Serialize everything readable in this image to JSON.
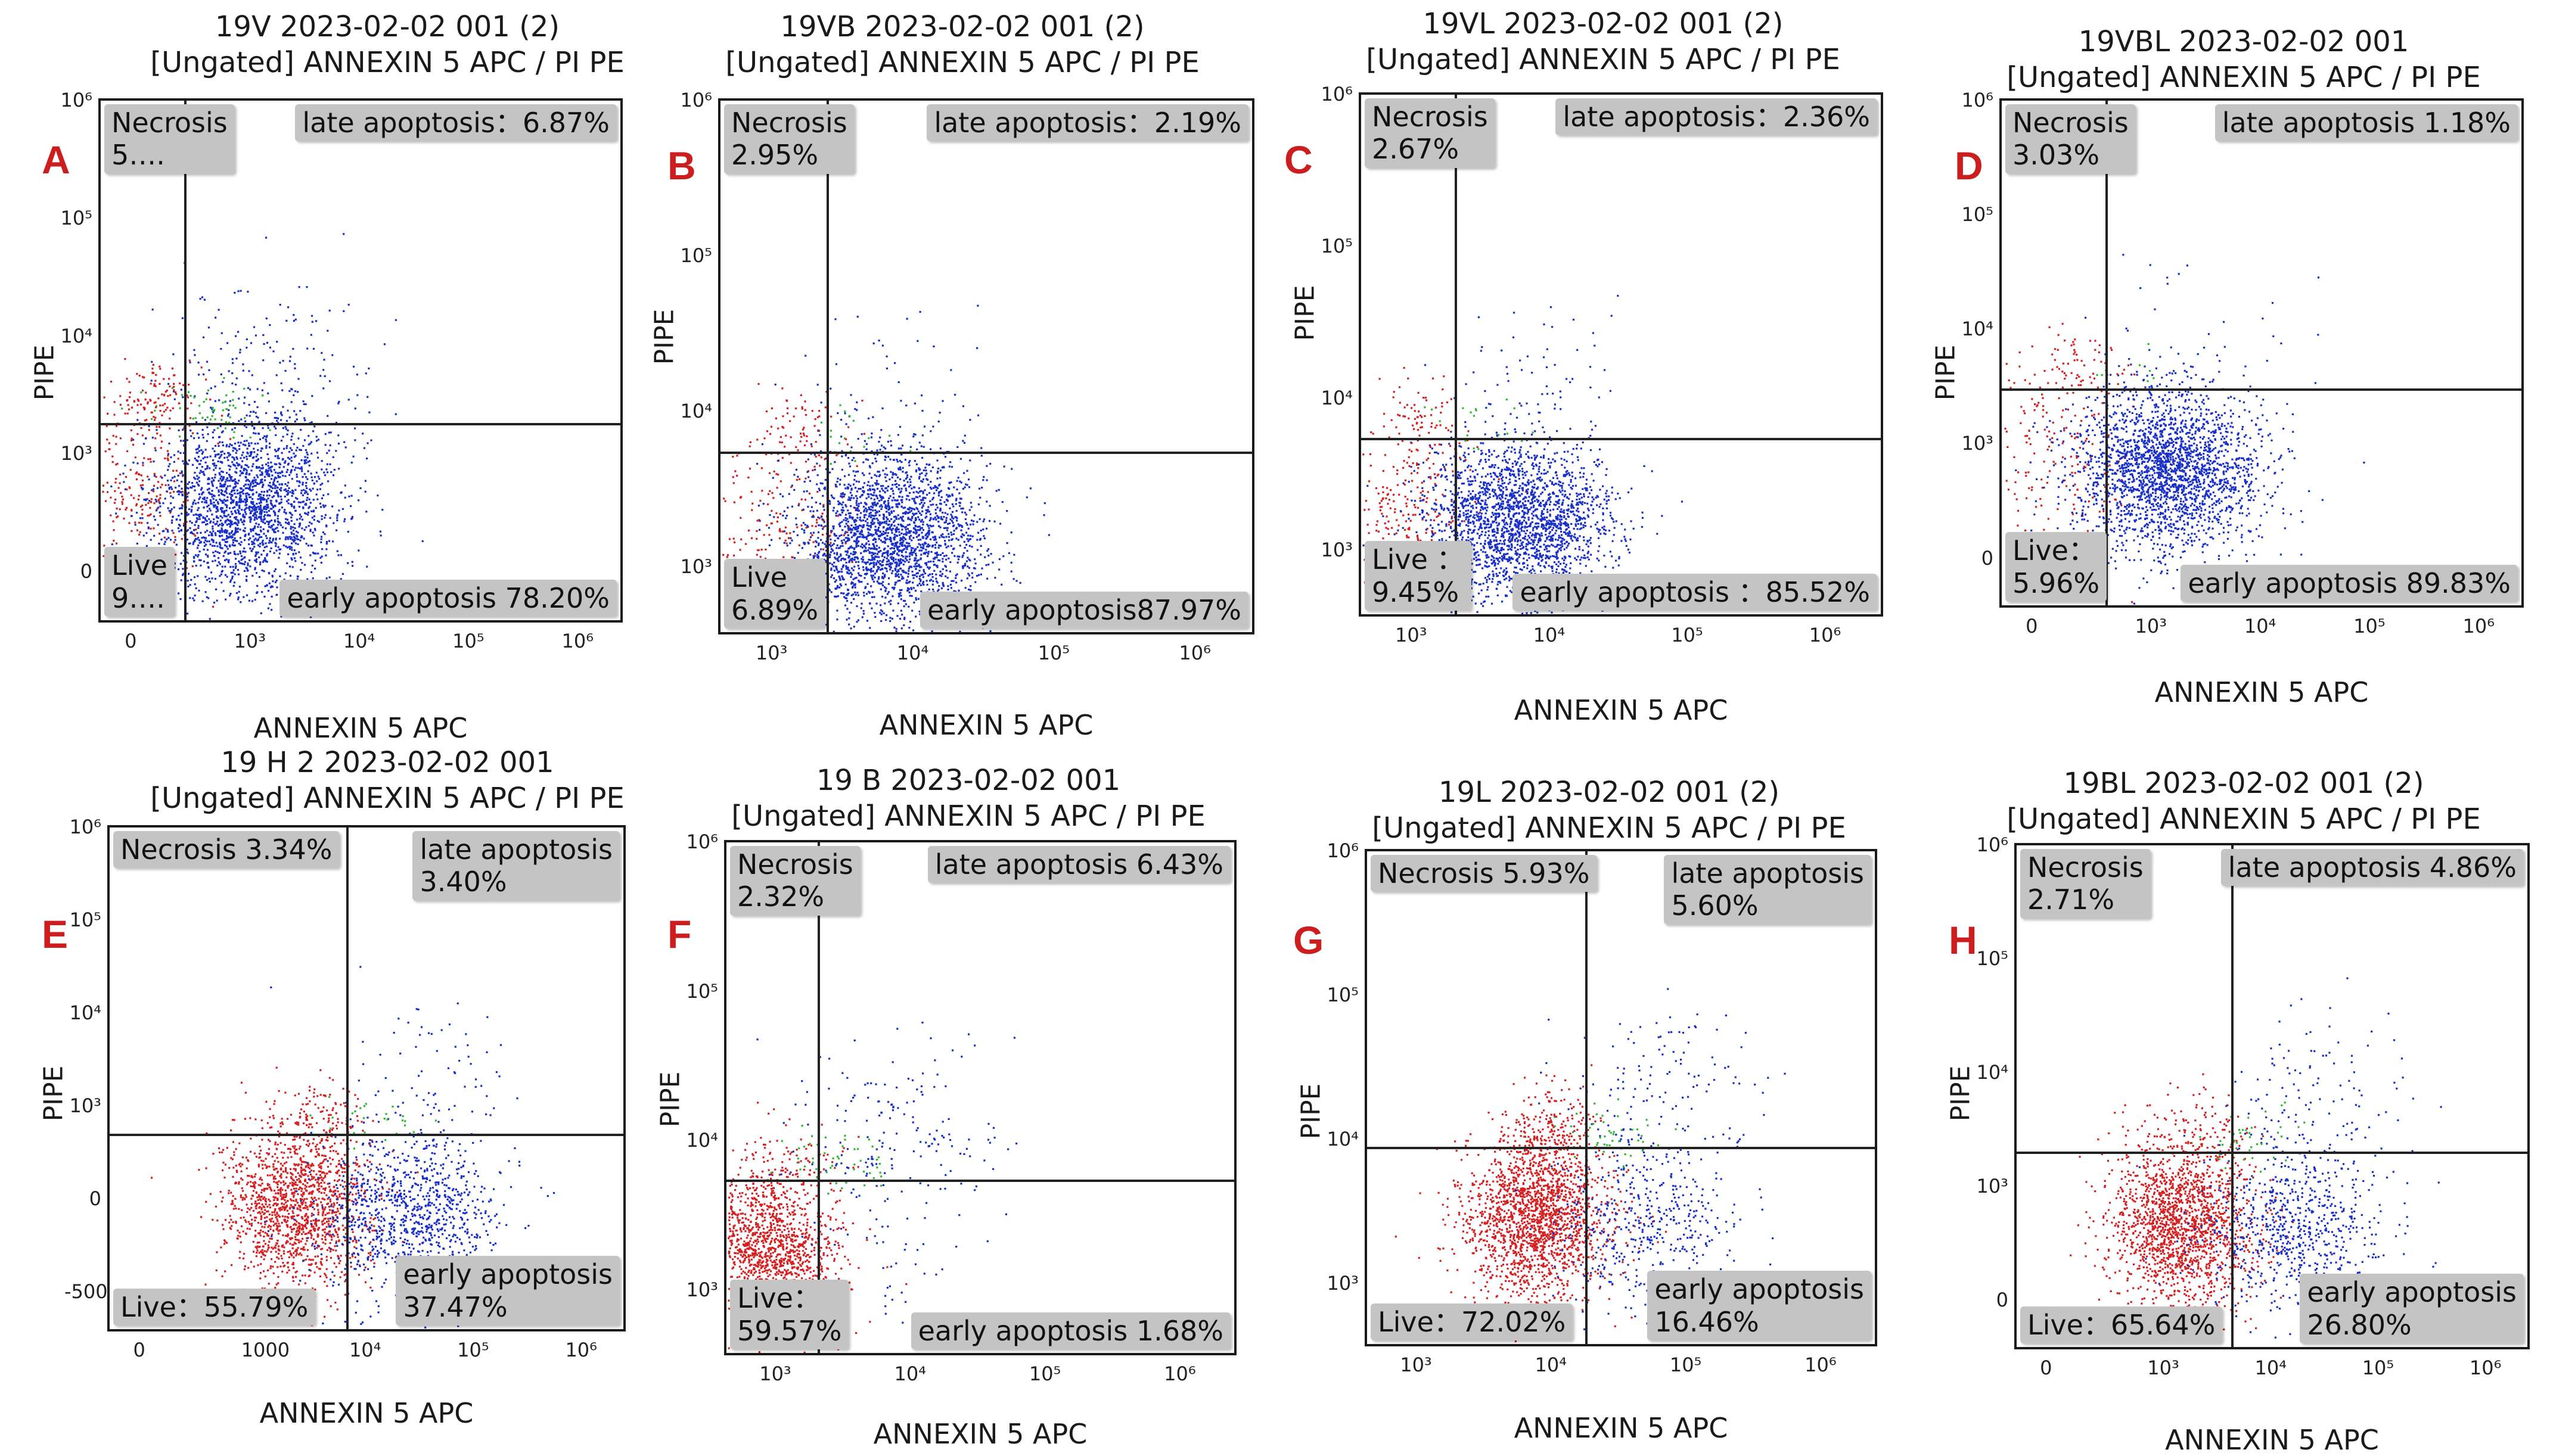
{
  "colors": {
    "live": "#d42020",
    "early": "#1830c8",
    "late": "#2fb82f",
    "label_bg": "#c4c4c4",
    "letter": "#cc1e1e"
  },
  "chart_data": [
    {
      "type": "scatter",
      "panel": "A",
      "title_line1": "19V 2023-02-02 001 (2)",
      "title_line2": "[Ungated] ANNEXIN 5 APC / PI PE",
      "xlabel": "ANNEXIN 5 APC",
      "ylabel": "PIPE",
      "x_ticks": [
        "0",
        "10³",
        "10⁴",
        "10⁵",
        "10⁶"
      ],
      "y_ticks": [
        "10⁶",
        "10⁵",
        "10⁴",
        "10³",
        "0"
      ],
      "quadrants": {
        "necrosis": "Necrosis\n5….",
        "late": "late apoptosis：6.87%",
        "live": "Live\n9….",
        "early": "early apoptosis 78.20%"
      },
      "populations": {
        "live_pct": 9,
        "early_pct": 78.2,
        "late_pct": 6.87,
        "necrosis_pct": 5
      }
    },
    {
      "type": "scatter",
      "panel": "B",
      "title_line1": "19VB 2023-02-02 001 (2)",
      "title_line2": "[Ungated] ANNEXIN 5 APC / PI PE",
      "xlabel": "ANNEXIN 5 APC",
      "ylabel": "PIPE",
      "x_ticks": [
        "10³",
        "10⁴",
        "10⁵",
        "10⁶"
      ],
      "y_ticks": [
        "10⁶",
        "10⁵",
        "10⁴",
        "10³"
      ],
      "quadrants": {
        "necrosis": "Necrosis\n2.95%",
        "late": "late apoptosis：2.19%",
        "live": "Live\n6.89%",
        "early": "early apoptosis87.97%"
      },
      "populations": {
        "live_pct": 6.89,
        "early_pct": 87.97,
        "late_pct": 2.19,
        "necrosis_pct": 2.95
      }
    },
    {
      "type": "scatter",
      "panel": "C",
      "title_line1": "19VL 2023-02-02 001 (2)",
      "title_line2": "[Ungated] ANNEXIN 5 APC / PI PE",
      "xlabel": "ANNEXIN 5 APC",
      "ylabel": "PIPE",
      "x_ticks": [
        "10³",
        "10⁴",
        "10⁵",
        "10⁶"
      ],
      "y_ticks": [
        "10⁶",
        "10⁵",
        "10⁴",
        "10³"
      ],
      "quadrants": {
        "necrosis": "Necrosis\n2.67%",
        "late": "late apoptosis：2.36%",
        "live": "Live ：\n9.45%",
        "early": "early apoptosis ：85.52%"
      },
      "populations": {
        "live_pct": 9.45,
        "early_pct": 85.52,
        "late_pct": 2.36,
        "necrosis_pct": 2.67
      }
    },
    {
      "type": "scatter",
      "panel": "D",
      "title_line1": "19VBL 2023-02-02 001",
      "title_line2": "[Ungated] ANNEXIN 5 APC / PI PE",
      "xlabel": "ANNEXIN 5 APC",
      "ylabel": "PIPE",
      "x_ticks": [
        "0",
        "10³",
        "10⁴",
        "10⁵",
        "10⁶"
      ],
      "y_ticks": [
        "10⁶",
        "10⁵",
        "10⁴",
        "10³",
        "0"
      ],
      "quadrants": {
        "necrosis": "Necrosis\n3.03%",
        "late": "late apoptosis 1.18%",
        "live": "Live：\n5.96%",
        "early": "early apoptosis 89.83%"
      },
      "populations": {
        "live_pct": 5.96,
        "early_pct": 89.83,
        "late_pct": 1.18,
        "necrosis_pct": 3.03
      }
    },
    {
      "type": "scatter",
      "panel": "E",
      "title_line1": "19 H 2 2023-02-02 001",
      "title_line2": "[Ungated] ANNEXIN 5 APC / PI PE",
      "xlabel": "ANNEXIN 5 APC",
      "ylabel": "PIPE",
      "x_ticks": [
        "0",
        "1000",
        "10⁴",
        "10⁵",
        "10⁶"
      ],
      "y_ticks": [
        "10⁶",
        "10⁵",
        "10⁴",
        "10³",
        "0",
        "-500"
      ],
      "quadrants": {
        "necrosis": "Necrosis 3.34%",
        "late": "late apoptosis\n3.40%",
        "live": "Live：55.79%",
        "early": "early apoptosis\n37.47%"
      },
      "populations": {
        "live_pct": 55.79,
        "early_pct": 37.47,
        "late_pct": 3.4,
        "necrosis_pct": 3.34
      }
    },
    {
      "type": "scatter",
      "panel": "F",
      "title_line1": "19 B 2023-02-02 001",
      "title_line2": "[Ungated] ANNEXIN 5 APC / PI PE",
      "xlabel": "ANNEXIN 5 APC",
      "ylabel": "PIPE",
      "x_ticks": [
        "10³",
        "10⁴",
        "10⁵",
        "10⁶"
      ],
      "y_ticks": [
        "10⁶",
        "10⁵",
        "10⁴",
        "10³"
      ],
      "quadrants": {
        "necrosis": "Necrosis\n2.32%",
        "late": "late apoptosis 6.43%",
        "live": "Live：\n59.57%",
        "early": "early apoptosis 1.68%"
      },
      "populations": {
        "live_pct": 59.57,
        "early_pct": 1.68,
        "late_pct": 6.43,
        "necrosis_pct": 2.32
      }
    },
    {
      "type": "scatter",
      "panel": "G",
      "title_line1": "19L 2023-02-02 001 (2)",
      "title_line2": "[Ungated] ANNEXIN 5 APC / PI PE",
      "xlabel": "ANNEXIN 5 APC",
      "ylabel": "PIPE",
      "x_ticks": [
        "10³",
        "10⁴",
        "10⁵",
        "10⁶"
      ],
      "y_ticks": [
        "10⁶",
        "10⁵",
        "10⁴",
        "10³"
      ],
      "quadrants": {
        "necrosis": "Necrosis 5.93%",
        "late": "late apoptosis\n5.60%",
        "live": "Live：72.02%",
        "early": "early apoptosis\n16.46%"
      },
      "populations": {
        "live_pct": 72.02,
        "early_pct": 16.46,
        "late_pct": 5.6,
        "necrosis_pct": 5.93
      }
    },
    {
      "type": "scatter",
      "panel": "H",
      "title_line1": "19BL 2023-02-02 001 (2)",
      "title_line2": "[Ungated] ANNEXIN 5 APC / PI PE",
      "xlabel": "ANNEXIN 5 APC",
      "ylabel": "PIPE",
      "x_ticks": [
        "0",
        "10³",
        "10⁴",
        "10⁵",
        "10⁶"
      ],
      "y_ticks": [
        "10⁶",
        "10⁵",
        "10⁴",
        "10³",
        "0"
      ],
      "quadrants": {
        "necrosis": "Necrosis\n2.71%",
        "late": "late apoptosis 4.86%",
        "live": "Live：65.64%",
        "early": "early apoptosis\n26.80%"
      },
      "populations": {
        "live_pct": 65.64,
        "early_pct": 26.8,
        "late_pct": 4.86,
        "necrosis_pct": 2.71
      }
    }
  ]
}
